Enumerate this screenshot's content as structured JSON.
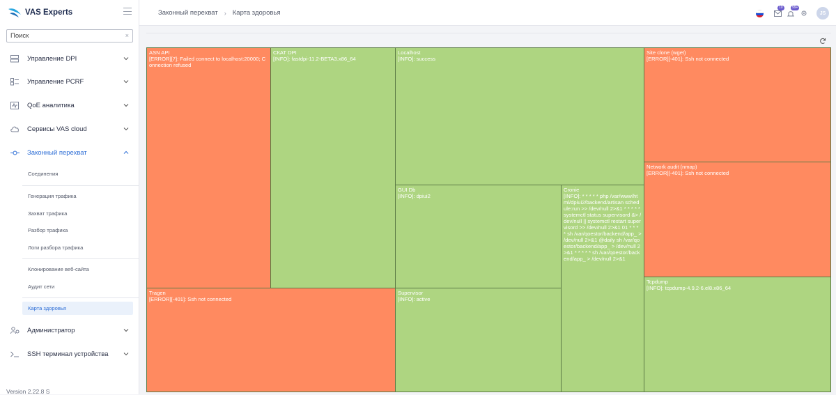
{
  "brand": {
    "name": "VAS Experts"
  },
  "search": {
    "placeholder": "Поиск",
    "clear": "×"
  },
  "nav": {
    "dpi": "Управление DPI",
    "pcrf": "Управление PCRF",
    "qoe": "QoE аналитика",
    "cloud": "Сервисы VAS cloud",
    "lawful": "Законный перехват",
    "admin": "Администратор",
    "ssh": "SSH терминал устройства"
  },
  "subnav": {
    "connections": "Соединения",
    "traffic_gen": "Генерация трафика",
    "traffic_capture": "Захват трафика",
    "traffic_parse": "Разбор трафика",
    "parse_logs": "Логи разбора трафика",
    "site_clone": "Клонирование веб-сайта",
    "net_audit": "Аудит сети",
    "health_map": "Карта здоровья"
  },
  "version": "Version 2.22.8 S",
  "breadcrumb": {
    "parent": "Законный перехват",
    "separator": "›",
    "current": "Карта здоровья"
  },
  "topbar": {
    "mail_count": "10",
    "bell_count": "99+",
    "avatar": "JS"
  },
  "colors": {
    "error": "#ff8a60",
    "ok": "#aed581",
    "accent": "#2f6fd6"
  },
  "treemap": {
    "asn_api": {
      "name": "ASN API",
      "msg": "[ERROR][7]: Failed connect to localhost:20000; Connection refused",
      "status": "error"
    },
    "ckat_dpi": {
      "name": "СКАТ DPI",
      "msg": "[INFO]: fastdpi-11.2-BETA3.x86_64",
      "status": "ok"
    },
    "localhost": {
      "name": "Localhost",
      "msg": "[INFO]: success",
      "status": "ok"
    },
    "site_clone": {
      "name": "Site clone (wget)",
      "msg": "[ERROR][-401]: Ssh not connected",
      "status": "error"
    },
    "net_audit": {
      "name": "Network audit (nmap)",
      "msg": "[ERROR][-401]: Ssh not connected",
      "status": "error"
    },
    "gui_db": {
      "name": "GUI Db",
      "msg": "[INFO]: dpiui2",
      "status": "ok"
    },
    "cronie": {
      "name": "Cronie",
      "msg": "[INFO]: * * * * * php /var/www/html/dpiui2/backend/artisan schedule:run >> /dev/null 2>&1 * * * * * systemctl status supervisord &> /dev/null || systemctl restart supervisord >> /dev/null 2>&1 01 * * * * sh /var/qoestor/backend/app_ > /dev/null 2>&1 @daily sh /var/qoestor/backend/app_ > /dev/null 2>&1 * * * * * sh /var/qoestor/backend/app_ > /dev/null 2>&1",
      "status": "ok"
    },
    "tcpdump": {
      "name": "Tcpdump",
      "msg": "[INFO]: tcpdump-4.9.2-6.el8.x86_64",
      "status": "ok"
    },
    "tragen": {
      "name": "Tragen",
      "msg": "[ERROR][-401]: Ssh not connected",
      "status": "error"
    },
    "supervisor": {
      "name": "Supervisor",
      "msg": "[INFO]: active",
      "status": "ok"
    }
  }
}
